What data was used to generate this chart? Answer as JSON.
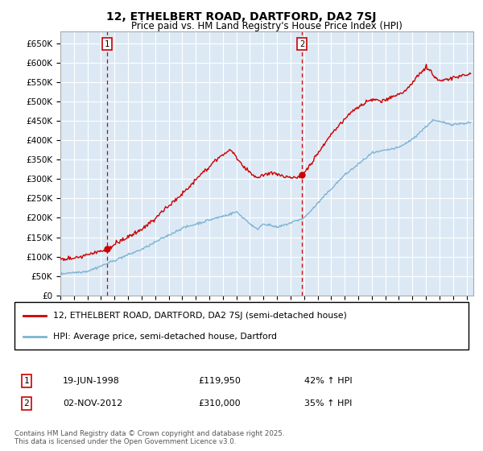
{
  "title1": "12, ETHELBERT ROAD, DARTFORD, DA2 7SJ",
  "title2": "Price paid vs. HM Land Registry's House Price Index (HPI)",
  "ylabel_ticks": [
    "£0",
    "£50K",
    "£100K",
    "£150K",
    "£200K",
    "£250K",
    "£300K",
    "£350K",
    "£400K",
    "£450K",
    "£500K",
    "£550K",
    "£600K",
    "£650K"
  ],
  "ytick_vals": [
    0,
    50000,
    100000,
    150000,
    200000,
    250000,
    300000,
    350000,
    400000,
    450000,
    500000,
    550000,
    600000,
    650000
  ],
  "xlim": [
    1995.0,
    2025.5
  ],
  "ylim": [
    0,
    680000
  ],
  "sale1_x": 1998.46,
  "sale1_y": 119950,
  "sale1_label": "1",
  "sale1_date": "19-JUN-1998",
  "sale1_price": "£119,950",
  "sale1_hpi": "42% ↑ HPI",
  "sale2_x": 2012.84,
  "sale2_y": 310000,
  "sale2_label": "2",
  "sale2_date": "02-NOV-2012",
  "sale2_price": "£310,000",
  "sale2_hpi": "35% ↑ HPI",
  "legend_line1": "12, ETHELBERT ROAD, DARTFORD, DA2 7SJ (semi-detached house)",
  "legend_line2": "HPI: Average price, semi-detached house, Dartford",
  "footer": "Contains HM Land Registry data © Crown copyright and database right 2025.\nThis data is licensed under the Open Government Licence v3.0.",
  "line_color_red": "#cc0000",
  "line_color_blue": "#7fb3d3",
  "bg_color": "#dce9f5",
  "grid_color": "#ffffff",
  "sale_box_color": "#cc0000",
  "marker_color_red": "#cc0000"
}
